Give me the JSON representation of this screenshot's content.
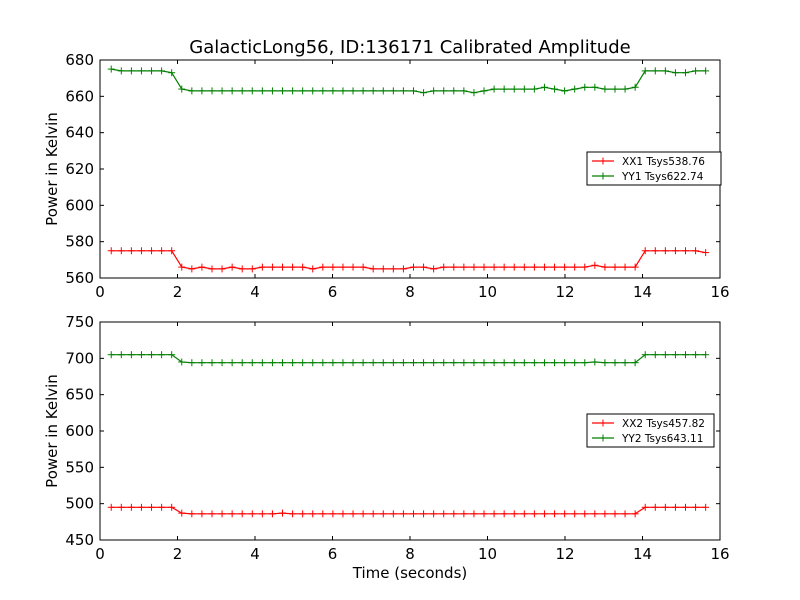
{
  "title": "GalacticLong56, ID:136171 Calibrated Amplitude",
  "xlabel": "Time (seconds)",
  "colors": {
    "red": "#ff0000",
    "green": "#008000"
  },
  "chart_data": [
    {
      "type": "line",
      "ylabel": "Power in Kelvin",
      "xlim": [
        0,
        16
      ],
      "ylim": [
        560,
        680
      ],
      "xticks": [
        "0",
        "2",
        "4",
        "6",
        "8",
        "10",
        "12",
        "14",
        "16"
      ],
      "yticks": [
        "560",
        "580",
        "600",
        "620",
        "640",
        "660",
        "680"
      ],
      "legend_position": "center-right",
      "x": [
        0.29,
        0.55,
        0.81,
        1.07,
        1.33,
        1.59,
        1.85,
        2.11,
        2.37,
        2.63,
        2.89,
        3.15,
        3.41,
        3.67,
        3.93,
        4.19,
        4.45,
        4.71,
        4.97,
        5.23,
        5.49,
        5.75,
        6.01,
        6.27,
        6.53,
        6.79,
        7.05,
        7.31,
        7.57,
        7.83,
        8.09,
        8.35,
        8.61,
        8.87,
        9.13,
        9.39,
        9.65,
        9.91,
        10.17,
        10.43,
        10.69,
        10.95,
        11.21,
        11.47,
        11.73,
        11.99,
        12.25,
        12.51,
        12.77,
        13.03,
        13.29,
        13.55,
        13.81,
        14.07,
        14.33,
        14.59,
        14.85,
        15.11,
        15.37,
        15.63
      ],
      "series": [
        {
          "name": "XX1 Tsys538.76",
          "color": "#ff0000",
          "values": [
            575,
            575,
            575,
            575,
            575,
            575,
            575,
            566,
            565,
            566,
            565,
            565,
            566,
            565,
            565,
            566,
            566,
            566,
            566,
            566,
            565,
            566,
            566,
            566,
            566,
            566,
            565,
            565,
            565,
            565,
            566,
            566,
            565,
            566,
            566,
            566,
            566,
            566,
            566,
            566,
            566,
            566,
            566,
            566,
            566,
            566,
            566,
            566,
            567,
            566,
            566,
            566,
            566,
            575,
            575,
            575,
            575,
            575,
            575,
            574
          ]
        },
        {
          "name": "YY1 Tsys622.74",
          "color": "#008000",
          "values": [
            675,
            674,
            674,
            674,
            674,
            674,
            673,
            664,
            663,
            663,
            663,
            663,
            663,
            663,
            663,
            663,
            663,
            663,
            663,
            663,
            663,
            663,
            663,
            663,
            663,
            663,
            663,
            663,
            663,
            663,
            663,
            662,
            663,
            663,
            663,
            663,
            662,
            663,
            664,
            664,
            664,
            664,
            664,
            665,
            664,
            663,
            664,
            665,
            665,
            664,
            664,
            664,
            665,
            674,
            674,
            674,
            673,
            673,
            674,
            674
          ]
        }
      ]
    },
    {
      "type": "line",
      "ylabel": "Power in Kelvin",
      "xlabel": "Time (seconds)",
      "xlim": [
        0,
        16
      ],
      "ylim": [
        450,
        750
      ],
      "xticks": [
        "0",
        "2",
        "4",
        "6",
        "8",
        "10",
        "12",
        "14",
        "16"
      ],
      "yticks": [
        "450",
        "500",
        "550",
        "600",
        "650",
        "700",
        "750"
      ],
      "legend_position": "center-right",
      "x": [
        0.29,
        0.55,
        0.81,
        1.07,
        1.33,
        1.59,
        1.85,
        2.11,
        2.37,
        2.63,
        2.89,
        3.15,
        3.41,
        3.67,
        3.93,
        4.19,
        4.45,
        4.71,
        4.97,
        5.23,
        5.49,
        5.75,
        6.01,
        6.27,
        6.53,
        6.79,
        7.05,
        7.31,
        7.57,
        7.83,
        8.09,
        8.35,
        8.61,
        8.87,
        9.13,
        9.39,
        9.65,
        9.91,
        10.17,
        10.43,
        10.69,
        10.95,
        11.21,
        11.47,
        11.73,
        11.99,
        12.25,
        12.51,
        12.77,
        13.03,
        13.29,
        13.55,
        13.81,
        14.07,
        14.33,
        14.59,
        14.85,
        15.11,
        15.37,
        15.63
      ],
      "series": [
        {
          "name": "XX2 Tsys457.82",
          "color": "#ff0000",
          "values": [
            495,
            495,
            495,
            495,
            495,
            495,
            495,
            487,
            486,
            486,
            486,
            486,
            486,
            486,
            486,
            486,
            486,
            487,
            486,
            486,
            486,
            486,
            486,
            486,
            486,
            486,
            486,
            486,
            486,
            486,
            486,
            486,
            486,
            486,
            486,
            486,
            486,
            486,
            486,
            486,
            486,
            486,
            486,
            486,
            486,
            486,
            486,
            486,
            486,
            486,
            486,
            486,
            486,
            495,
            495,
            495,
            495,
            495,
            495,
            495
          ]
        },
        {
          "name": "YY2 Tsys643.11",
          "color": "#008000",
          "values": [
            705,
            705,
            705,
            705,
            705,
            705,
            705,
            695,
            694,
            694,
            694,
            694,
            694,
            694,
            694,
            694,
            694,
            694,
            694,
            694,
            694,
            694,
            694,
            694,
            694,
            694,
            694,
            694,
            694,
            694,
            694,
            694,
            694,
            694,
            694,
            694,
            694,
            694,
            694,
            694,
            694,
            694,
            694,
            694,
            694,
            694,
            694,
            694,
            695,
            694,
            694,
            694,
            694,
            705,
            705,
            705,
            705,
            705,
            705,
            705
          ]
        }
      ]
    }
  ]
}
